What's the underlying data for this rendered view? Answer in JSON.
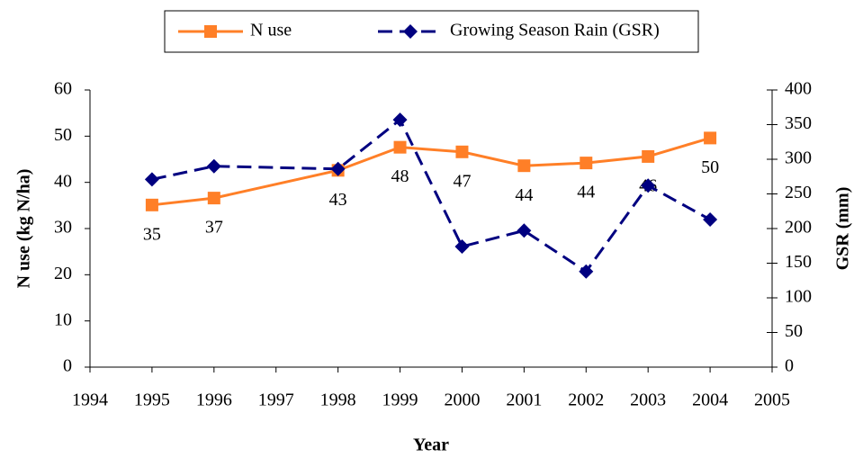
{
  "chart_data": {
    "type": "line",
    "x_label": "Year",
    "y_label": "N use (kg N/ha)",
    "y2_label": "GSR (mm)",
    "x": [
      1995,
      1996,
      1998,
      1999,
      2000,
      2001,
      2002,
      2003,
      2004
    ],
    "xlim": [
      1994,
      2005
    ],
    "xticks": [
      1994,
      1995,
      1996,
      1997,
      1998,
      1999,
      2000,
      2001,
      2002,
      2003,
      2004,
      2005
    ],
    "ylim": [
      0,
      60
    ],
    "yticks": [
      0,
      10,
      20,
      30,
      40,
      50,
      60
    ],
    "y2lim": [
      0,
      400
    ],
    "y2ticks": [
      0,
      50,
      100,
      150,
      200,
      250,
      300,
      350,
      400
    ],
    "legend": "top",
    "series": [
      {
        "name": "N use",
        "color": "#ff7f27",
        "marker": "square",
        "dash": "solid",
        "values": [
          35.1,
          36.6,
          42.6,
          47.6,
          46.6,
          43.6,
          44.2,
          45.6,
          49.6
        ],
        "value_labels": [
          "35",
          "37",
          "43",
          "48",
          "47",
          "44",
          "44",
          "46",
          "50"
        ]
      },
      {
        "name": "Growing Season Rain (GSR)",
        "color": "#000080",
        "marker": "diamond",
        "dash": "dashed",
        "axis": "y2",
        "values": [
          271,
          290,
          286,
          357,
          174,
          197,
          138,
          262,
          213
        ]
      }
    ]
  }
}
